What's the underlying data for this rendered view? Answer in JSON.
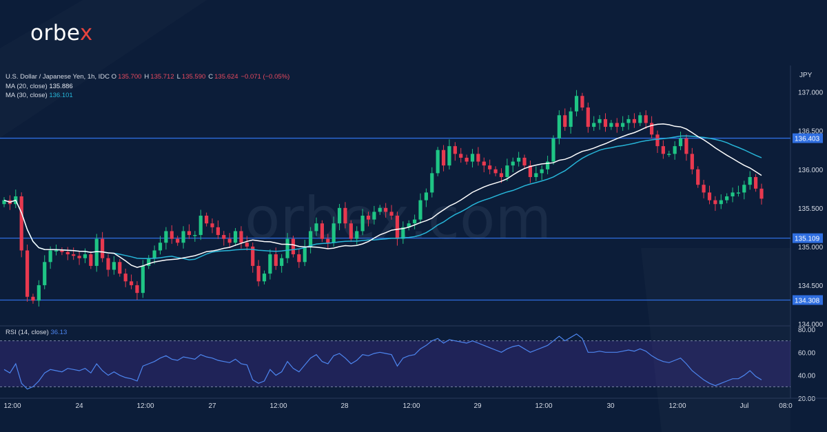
{
  "brand": {
    "name_main": "orbe",
    "name_accent": "x",
    "watermark": "orbex.com"
  },
  "symbol": {
    "name": "U.S. Dollar / Japanese Yen, 1h, IDC",
    "currency": "JPY",
    "ohlc": [
      {
        "k": "O",
        "v": "135.700"
      },
      {
        "k": "H",
        "v": "135.712"
      },
      {
        "k": "L",
        "v": "135.590"
      },
      {
        "k": "C",
        "v": "135.624"
      },
      {
        "k": "",
        "v": "−0.071 (−0.05%)"
      }
    ]
  },
  "ma20": {
    "label": "MA (20, close)",
    "value": "135.886",
    "color": "#ffffff"
  },
  "ma30": {
    "label": "MA (30, close)",
    "value": "136.101",
    "color": "#27b6d9"
  },
  "rsi": {
    "label": "RSI (14, close)",
    "value": "36.13",
    "color": "#4d86f0"
  },
  "colors": {
    "up": "#1fc585",
    "down": "#e8394f",
    "level_line": "#2f6ee0",
    "level_label_bg": "#2f6ee0",
    "background": "#0c1d39"
  },
  "chart_data": {
    "type": "candlestick",
    "title": "U.S. Dollar / Japanese Yen, 1h, IDC",
    "y_range": [
      134.0,
      137.3
    ],
    "y_ticks": [
      "137.000",
      "136.500",
      "136.000",
      "135.500",
      "135.000",
      "134.500",
      "134.000"
    ],
    "levels": [
      "136.403",
      "135.109",
      "134.308"
    ],
    "x_ticks": [
      "12:00",
      "24",
      "12:00",
      "27",
      "12:00",
      "28",
      "12:00",
      "29",
      "12:00",
      "30",
      "12:00",
      "Jul",
      "08:0"
    ],
    "close": [
      135.6,
      135.55,
      135.65,
      134.95,
      134.35,
      134.3,
      134.5,
      134.8,
      134.95,
      134.95,
      134.93,
      134.9,
      134.88,
      134.85,
      134.9,
      134.75,
      135.1,
      134.85,
      134.7,
      134.8,
      134.65,
      134.55,
      134.5,
      134.4,
      134.75,
      134.85,
      134.95,
      135.05,
      135.2,
      135.1,
      135.05,
      135.2,
      135.15,
      135.15,
      135.4,
      135.3,
      135.25,
      135.15,
      135.1,
      135.05,
      135.2,
      135.05,
      135.0,
      134.75,
      134.55,
      134.65,
      134.9,
      134.75,
      134.85,
      135.1,
      134.9,
      134.8,
      135.0,
      135.2,
      135.3,
      135.1,
      135.05,
      135.3,
      135.5,
      135.3,
      135.1,
      135.2,
      135.4,
      135.35,
      135.45,
      135.5,
      135.45,
      135.4,
      135.1,
      135.25,
      135.3,
      135.35,
      135.6,
      135.7,
      135.95,
      136.25,
      136.05,
      136.3,
      136.2,
      136.15,
      136.1,
      136.2,
      136.1,
      136.05,
      136.0,
      135.95,
      135.9,
      136.05,
      136.1,
      136.15,
      136.05,
      135.9,
      135.95,
      136.0,
      136.1,
      136.4,
      136.7,
      136.55,
      136.75,
      136.95,
      136.8,
      136.55,
      136.6,
      136.65,
      136.55,
      136.6,
      136.55,
      136.6,
      136.65,
      136.6,
      136.7,
      136.6,
      136.45,
      136.3,
      136.2,
      136.2,
      136.3,
      136.4,
      136.2,
      136.0,
      135.8,
      135.7,
      135.6,
      135.55,
      135.6,
      135.65,
      135.7,
      135.7,
      135.8,
      135.9,
      135.75,
      135.62
    ],
    "rsi_range": [
      20,
      80
    ],
    "rsi_ticks": [
      "80.00",
      "60.00",
      "40.00",
      "20.00"
    ],
    "rsi_bands": [
      70,
      30
    ],
    "rsi_values": [
      45,
      42,
      50,
      33,
      28,
      30,
      35,
      42,
      45,
      44,
      43,
      46,
      45,
      44,
      46,
      42,
      50,
      44,
      40,
      43,
      40,
      38,
      37,
      35,
      48,
      50,
      52,
      55,
      57,
      54,
      53,
      56,
      55,
      54,
      58,
      56,
      55,
      53,
      52,
      51,
      54,
      50,
      49,
      36,
      33,
      35,
      45,
      40,
      43,
      52,
      46,
      43,
      49,
      55,
      58,
      52,
      50,
      57,
      59,
      55,
      50,
      53,
      58,
      57,
      59,
      60,
      59,
      58,
      48,
      55,
      57,
      58,
      63,
      66,
      70,
      72,
      68,
      71,
      70,
      69,
      68,
      70,
      68,
      66,
      64,
      62,
      60,
      63,
      65,
      66,
      63,
      60,
      62,
      64,
      66,
      70,
      74,
      70,
      73,
      76,
      72,
      60,
      60,
      61,
      60,
      60,
      60,
      61,
      62,
      61,
      63,
      61,
      57,
      54,
      52,
      51,
      53,
      55,
      50,
      44,
      40,
      36,
      33,
      31,
      33,
      35,
      37,
      37,
      40,
      44,
      39,
      36
    ]
  }
}
